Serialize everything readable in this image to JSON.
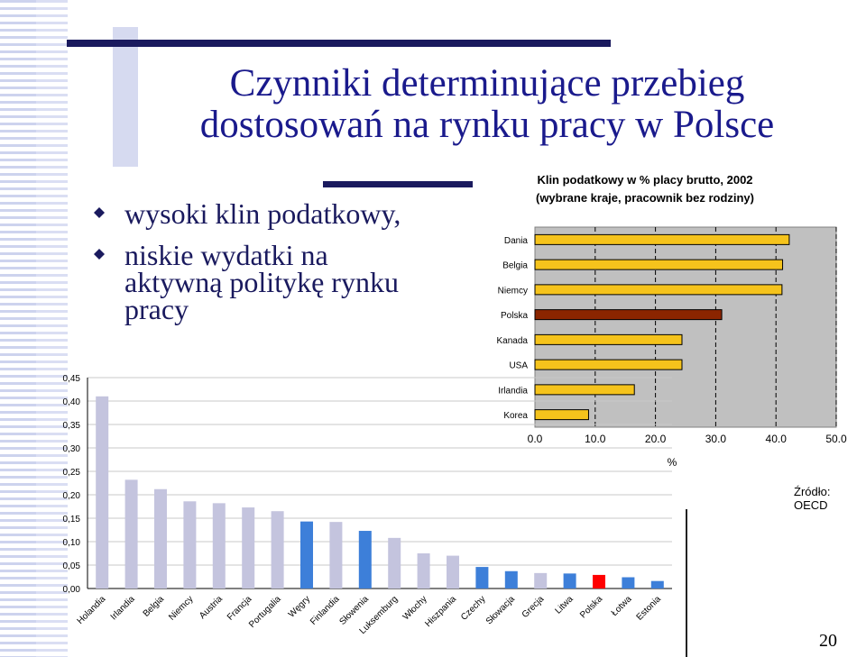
{
  "slide": {
    "title_line1": "Czynniki determinujące przebieg",
    "title_line2": "dostosowań na rynku pracy w Polsce",
    "bullets": [
      {
        "lines": [
          "wysoki klin podatkowy,"
        ]
      },
      {
        "lines": [
          "niskie wydatki na",
          "aktywną politykę rynku",
          "pracy"
        ]
      }
    ],
    "page_number": "20",
    "source": "Źródło: OECD"
  },
  "colors": {
    "title": "#1a1a8c",
    "text": "#1a1a5e",
    "bar_gold": "#f5c31c",
    "bar_poland": "#8b2500",
    "bar_lavender": "#c4c4de",
    "bar_blue": "#3d7fd9",
    "bar_red": "#ff0000",
    "plot_bg": "#c0c0c0"
  },
  "chart_data": [
    {
      "type": "bar",
      "orientation": "horizontal",
      "title": "Klin podatkowy w % placy brutto, 2002",
      "subtitle": "(wybrane kraje, pracownik bez rodziny)",
      "xlabel": "%",
      "ylabel": "",
      "categories": [
        "Dania",
        "Belgia",
        "Niemcy",
        "Polska",
        "Kanada",
        "USA",
        "Irlandia",
        "Korea"
      ],
      "values": [
        42.2,
        41.1,
        41.0,
        31.0,
        24.4,
        24.4,
        16.5,
        8.9
      ],
      "highlight": "Polska",
      "xlim": [
        0,
        50
      ],
      "xticks": [
        "0.0",
        "10.0",
        "20.0",
        "30.0",
        "40.0",
        "50.0"
      ],
      "grid": true
    },
    {
      "type": "bar",
      "orientation": "vertical",
      "title": "",
      "xlabel": "",
      "ylabel": "",
      "categories": [
        "Holandia",
        "Irlandia",
        "Belgia",
        "Niemcy",
        "Austria",
        "Francja",
        "Portugalia",
        "Węgry",
        "Finlandia",
        "Słowenia",
        "Luksemburg",
        "Włochy",
        "Hiszpania",
        "Czechy",
        "Słowacja",
        "Grecja",
        "Litwa",
        "Polska",
        "Łotwa",
        "Estonia"
      ],
      "values": [
        0.41,
        0.232,
        0.212,
        0.186,
        0.182,
        0.173,
        0.165,
        0.143,
        0.142,
        0.123,
        0.108,
        0.075,
        0.07,
        0.046,
        0.037,
        0.033,
        0.032,
        0.029,
        0.024,
        0.016
      ],
      "bar_colors": [
        "lavender",
        "lavender",
        "lavender",
        "lavender",
        "lavender",
        "lavender",
        "lavender",
        "blue",
        "lavender",
        "blue",
        "lavender",
        "lavender",
        "lavender",
        "blue",
        "blue",
        "lavender",
        "blue",
        "red",
        "blue",
        "blue"
      ],
      "ylim": [
        0,
        0.45
      ],
      "yticks": [
        "0,00",
        "0,05",
        "0,10",
        "0,15",
        "0,20",
        "0,25",
        "0,30",
        "0,35",
        "0,40",
        "0,45"
      ],
      "grid": true
    }
  ]
}
